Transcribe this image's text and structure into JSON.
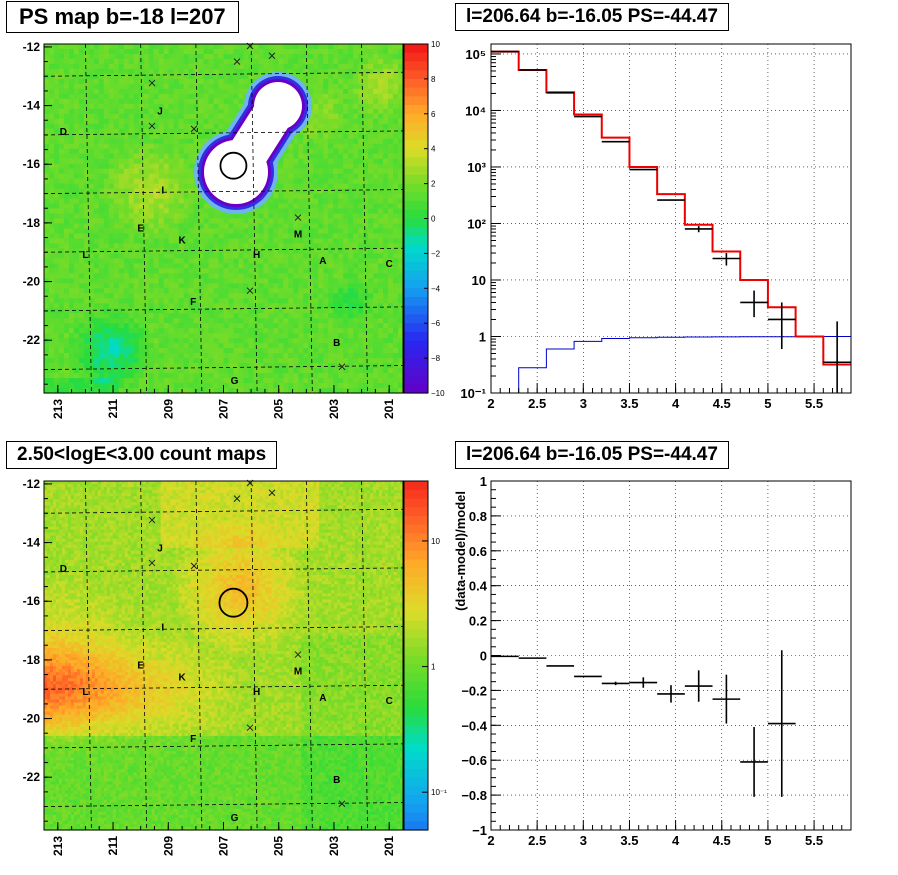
{
  "panels": {
    "tl": {
      "title": "PS map b=-18 l=207",
      "ytick_labels": [
        "-12",
        "-14",
        "-16",
        "-18",
        "-20",
        "-22"
      ],
      "xtick_labels": [
        "213",
        "211",
        "209",
        "207",
        "205",
        "203",
        "201"
      ],
      "palette_labels": [
        "10",
        "8",
        "6",
        "4",
        "2",
        "0",
        "−2",
        "−4",
        "−6",
        "−8",
        "−10"
      ],
      "region_labels": [
        "D",
        "J",
        "I",
        "E",
        "K",
        "L",
        "H",
        "M",
        "A",
        "C",
        "F",
        "B",
        "G"
      ]
    },
    "bl": {
      "title": "2.50<logE<3.00 count maps",
      "ytick_labels": [
        "-12",
        "-14",
        "-16",
        "-18",
        "-20",
        "-22"
      ],
      "xtick_labels": [
        "213",
        "211",
        "209",
        "207",
        "205",
        "203",
        "201"
      ],
      "palette_labels": [
        "10",
        "1",
        "10⁻¹"
      ],
      "region_labels": [
        "D",
        "J",
        "I",
        "E",
        "K",
        "L",
        "H",
        "M",
        "A",
        "C",
        "F",
        "B",
        "G"
      ]
    },
    "tr": {
      "title": "l=206.64 b=-16.05 PS=-44.47",
      "ytick_labels": [
        "10⁻¹",
        "1",
        "10",
        "10²",
        "10³",
        "10⁴",
        "10⁵"
      ],
      "xtick_labels": [
        "2",
        "2.5",
        "3",
        "3.5",
        "4",
        "4.5",
        "5",
        "5.5"
      ]
    },
    "br": {
      "title": "l=206.64 b=-16.05 PS=-44.47",
      "ylabel": "(data-model)/model",
      "ytick_labels": [
        "−1",
        "−0.8",
        "−0.6",
        "−0.4",
        "−0.2",
        "0",
        "0.2",
        "0.4",
        "0.6",
        "0.8",
        "1"
      ],
      "xtick_labels": [
        "2",
        "2.5",
        "3",
        "3.5",
        "4",
        "4.5",
        "5",
        "5.5"
      ]
    }
  },
  "colors": {
    "data": "#000000",
    "model": "#ee0000",
    "background": "#0000cc",
    "grid": "#000000"
  },
  "chart_data": [
    {
      "type": "heatmap",
      "title": "PS map b=-18 l=207",
      "xlim": [
        213.5,
        200.5
      ],
      "ylim": [
        -23.8,
        -11.9
      ],
      "zlim": [
        -10,
        10
      ],
      "description_values": "PS significance map",
      "source_circle": {
        "l": 206.64,
        "b": -16.05
      },
      "labels": [
        {
          "text": "D",
          "l": 212.8,
          "b": -15.0
        },
        {
          "text": "J",
          "l": 209.3,
          "b": -14.3
        },
        {
          "text": "I",
          "l": 209.2,
          "b": -17.0
        },
        {
          "text": "E",
          "l": 210.0,
          "b": -18.3
        },
        {
          "text": "K",
          "l": 208.5,
          "b": -18.7
        },
        {
          "text": "L",
          "l": 212.0,
          "b": -19.2
        },
        {
          "text": "H",
          "l": 205.8,
          "b": -19.2
        },
        {
          "text": "M",
          "l": 204.3,
          "b": -18.5
        },
        {
          "text": "A",
          "l": 203.4,
          "b": -19.4
        },
        {
          "text": "C",
          "l": 201.0,
          "b": -19.5
        },
        {
          "text": "F",
          "l": 208.1,
          "b": -20.8
        },
        {
          "text": "B",
          "l": 202.9,
          "b": -22.2
        },
        {
          "text": "G",
          "l": 206.6,
          "b": -23.5
        }
      ]
    },
    {
      "type": "heatmap",
      "title": "2.50<logE<3.00 count maps",
      "xlim": [
        213.5,
        200.5
      ],
      "ylim": [
        -23.8,
        -11.9
      ],
      "zscale": "log",
      "zlim": [
        0.05,
        30
      ]
    },
    {
      "type": "line",
      "title": "l=206.64 b=-16.05 PS=-44.47",
      "xlim": [
        2,
        5.9
      ],
      "ylim": [
        0.1,
        150000
      ],
      "yscale": "log",
      "grid": true,
      "bin_edges": [
        2.0,
        2.3,
        2.6,
        2.9,
        3.2,
        3.5,
        3.8,
        4.1,
        4.4,
        4.7,
        5.0,
        5.3,
        5.6,
        5.9
      ],
      "series": [
        {
          "values": [
            110000,
            52000,
            21000,
            8500,
            3300,
            1000,
            330,
            95,
            32,
            10,
            3.3,
            1.0,
            0.32
          ]
        },
        {
          "values": [
            0.04,
            0.28,
            0.6,
            0.82,
            0.92,
            0.95,
            0.97,
            0.98,
            0.985,
            0.99,
            0.99,
            0.995,
            1.0
          ]
        },
        {
          "x": [
            2.15,
            2.45,
            2.75,
            3.05,
            3.35,
            3.65,
            3.95,
            4.25,
            4.55,
            4.85,
            5.15,
            5.75
          ],
          "values": [
            110000,
            52000,
            20500,
            7800,
            2800,
            900,
            260,
            80,
            24,
            4.0,
            2.0,
            0.35
          ],
          "err_low": [
            0,
            0,
            0,
            0,
            0,
            0,
            0,
            10,
            6,
            1.8,
            1.4,
            0.3
          ],
          "err_high": [
            0,
            0,
            0,
            0,
            0,
            0,
            0,
            10,
            6,
            2.5,
            2.0,
            1.5
          ]
        }
      ]
    },
    {
      "type": "scatter",
      "title": "l=206.64 b=-16.05 PS=-44.47",
      "ylabel": "(data-model)/model",
      "xlim": [
        2,
        5.9
      ],
      "ylim": [
        -1,
        1
      ],
      "grid": true,
      "series": [
        {
          "x": [
            2.15,
            2.45,
            2.75,
            3.05,
            3.35,
            3.65,
            3.95,
            4.25,
            4.55,
            4.85,
            5.15
          ],
          "values": [
            -0.005,
            -0.015,
            -0.06,
            -0.12,
            -0.16,
            -0.155,
            -0.22,
            -0.175,
            -0.25,
            -0.61,
            -0.39
          ],
          "err": [
            0.0,
            0.0,
            0.0,
            0.0,
            0.01,
            0.03,
            0.05,
            0.09,
            0.14,
            0.2,
            0.42
          ]
        }
      ]
    }
  ]
}
